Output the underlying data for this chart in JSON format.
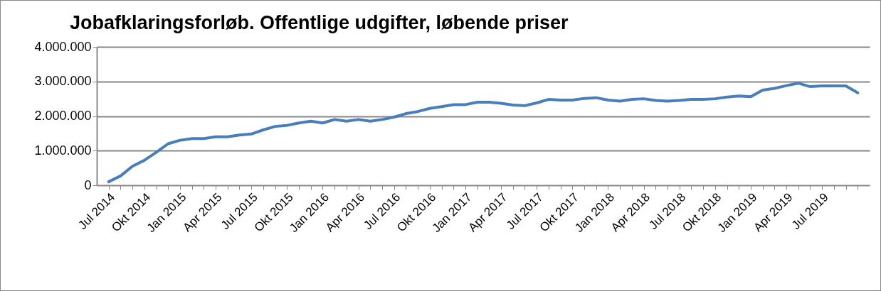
{
  "chart_data": {
    "type": "line",
    "title": "Jobafklaringsforløb. Offentlige udgifter, løbende priser",
    "categories": [
      "Jul 2014",
      null,
      null,
      "Okt 2014",
      null,
      null,
      "Jan 2015",
      null,
      null,
      "Apr 2015",
      null,
      null,
      "Jul 2015",
      null,
      null,
      "Okt 2015",
      null,
      null,
      "Jan 2016",
      null,
      null,
      "Apr 2016",
      null,
      null,
      "Jul 2016",
      null,
      null,
      "Okt 2016",
      null,
      null,
      "Jan 2017",
      null,
      null,
      "Apr 2017",
      null,
      null,
      "Jul 2017",
      null,
      null,
      "Okt 2017",
      null,
      null,
      "Jan 2018",
      null,
      null,
      "Apr 2018",
      null,
      null,
      "Jul 2018",
      null,
      null,
      "Okt 2018",
      null,
      null,
      "Jan 2019",
      null,
      null,
      "Apr 2019",
      null,
      null,
      "Jul 2019",
      null,
      null,
      null
    ],
    "series": [
      {
        "color": "#4a7ebb",
        "values": [
          100000,
          270000,
          550000,
          720000,
          950000,
          1200000,
          1300000,
          1350000,
          1350000,
          1400000,
          1400000,
          1450000,
          1480000,
          1600000,
          1700000,
          1730000,
          1800000,
          1850000,
          1800000,
          1900000,
          1850000,
          1900000,
          1850000,
          1900000,
          1970000,
          2070000,
          2130000,
          2220000,
          2270000,
          2330000,
          2330000,
          2400000,
          2400000,
          2370000,
          2320000,
          2300000,
          2380000,
          2480000,
          2460000,
          2460000,
          2510000,
          2530000,
          2460000,
          2430000,
          2480000,
          2500000,
          2450000,
          2430000,
          2450000,
          2480000,
          2480000,
          2500000,
          2550000,
          2580000,
          2560000,
          2750000,
          2800000,
          2880000,
          2950000,
          2850000,
          2870000,
          2870000,
          2870000,
          2670000
        ]
      }
    ],
    "ylim": [
      0,
      4000000
    ],
    "yticks": [
      {
        "value": 0,
        "label": "0"
      },
      {
        "value": 1000000,
        "label": "1.000.000"
      },
      {
        "value": 2000000,
        "label": "2.000.000"
      },
      {
        "value": 3000000,
        "label": "3.000.000"
      },
      {
        "value": 4000000,
        "label": "4.000.000"
      }
    ],
    "grid": "y",
    "marker": "none",
    "line_style": "solid"
  }
}
